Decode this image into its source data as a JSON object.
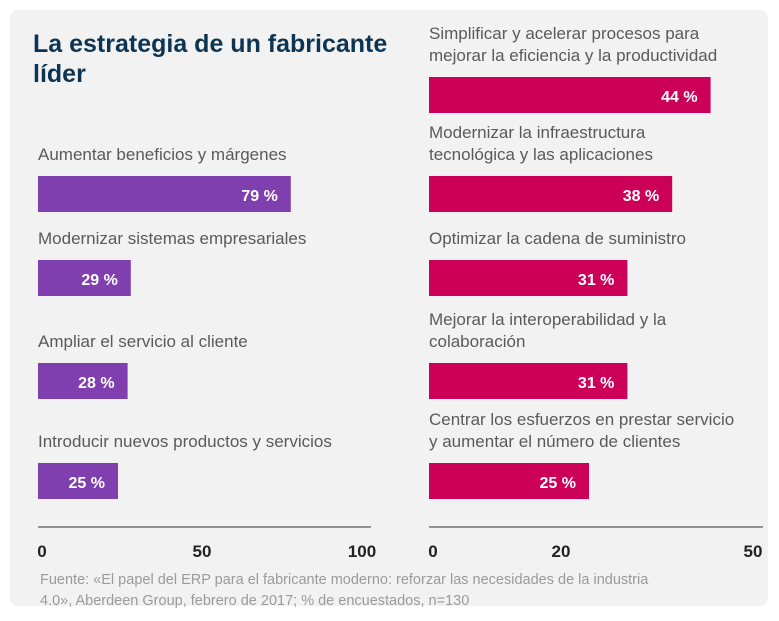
{
  "title": "La estrategia de un fabricante\nlíder",
  "source": "Fuente: «El papel del ERP para el fabricante moderno: reforzar las necesidades de la industria\n4.0», Aberdeen Group, febrero de 2017; % de encuestados, n=130",
  "chart_data": [
    {
      "type": "bar",
      "orientation": "horizontal",
      "color": "#7f3fae",
      "categories": [
        "Aumentar beneficios y márgenes",
        "Modernizar sistemas empresariales",
        "Ampliar el servicio al cliente",
        "Introducir nuevos productos y servicios"
      ],
      "values": [
        79,
        29,
        28,
        25
      ],
      "value_labels": [
        "79 %",
        "29 %",
        "28 %",
        "25 %"
      ],
      "xlim": [
        0,
        100
      ],
      "xticks": [
        0,
        50,
        100
      ]
    },
    {
      "type": "bar",
      "orientation": "horizontal",
      "color": "#cc0058",
      "categories": [
        "Simplificar y acelerar procesos para\nmejorar la eficiencia y la productividad",
        "Modernizar la infraestructura\ntecnológica  y las aplicaciones",
        "Optimizar la cadena de suministro",
        "Mejorar la interoperabilidad y la\ncolaboración",
        "Centrar los esfuerzos en prestar servicio\ny aumentar el número de clientes"
      ],
      "values": [
        44,
        38,
        31,
        31,
        25
      ],
      "value_labels": [
        "44 %",
        "38 %",
        "31 %",
        "31 %",
        "25 %"
      ],
      "xlim": [
        0,
        50
      ],
      "xticks": [
        0,
        20,
        50
      ]
    }
  ]
}
